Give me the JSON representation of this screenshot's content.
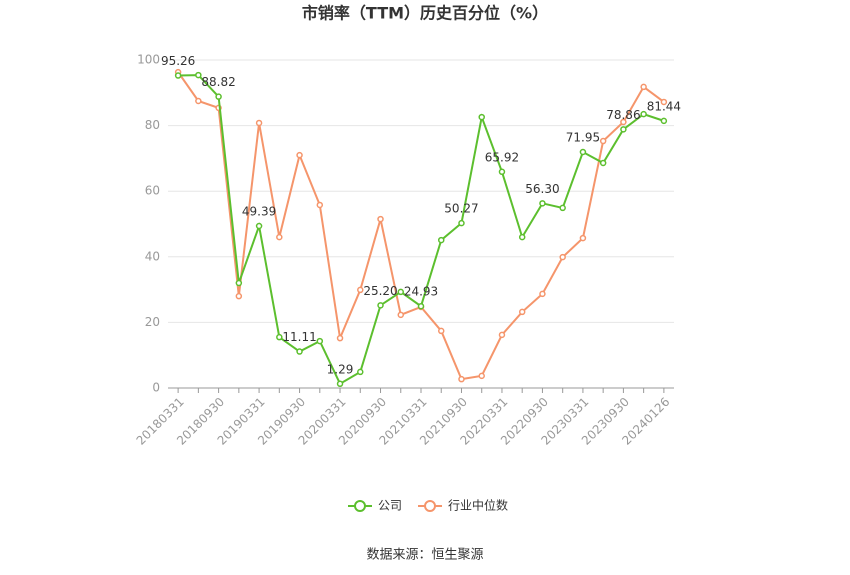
{
  "chart_data": {
    "type": "line",
    "title": "市销率（TTM）历史百分位（%）",
    "categories": [
      "20180331",
      null,
      "20180930",
      null,
      "20190331",
      null,
      "20190930",
      null,
      "20200331",
      null,
      "20200930",
      null,
      "20210331",
      null,
      "20210930",
      null,
      "20220331",
      null,
      "20220930",
      null,
      "20230331",
      null,
      "20230930",
      null,
      "20240126"
    ],
    "series": [
      {
        "name": "公司",
        "color": "#5cbf2e",
        "values": [
          95.26,
          95.4,
          88.82,
          32,
          49.39,
          15.5,
          11.11,
          14.3,
          1.29,
          4.9,
          25.2,
          29.3,
          24.93,
          45.1,
          50.27,
          82.6,
          65.92,
          46,
          56.3,
          54.9,
          71.95,
          68.6,
          78.86,
          83.5,
          81.44
        ],
        "value_labels": [
          "95.26",
          null,
          "88.82",
          null,
          "49.39",
          null,
          "11.11",
          null,
          "1.29",
          null,
          "25.20",
          null,
          "24.93",
          null,
          "50.27",
          null,
          "65.92",
          null,
          "56.30",
          null,
          "71.95",
          null,
          "78.86",
          null,
          "81.44"
        ]
      },
      {
        "name": "行业中位数",
        "color": "#f5956b",
        "values": [
          96.3,
          87.5,
          85.4,
          28,
          80.8,
          46,
          71,
          55.8,
          15.2,
          29.9,
          51.5,
          22.3,
          24.7,
          17.4,
          2.7,
          3.7,
          16.2,
          23.2,
          28.7,
          39.9,
          45.7,
          75.3,
          81.1,
          91.8,
          87.2
        ]
      }
    ],
    "ylim": [
      0,
      100
    ],
    "yticks": [
      0,
      20,
      40,
      60,
      80,
      100
    ],
    "grid": true,
    "source": "数据来源：恒生聚源"
  }
}
